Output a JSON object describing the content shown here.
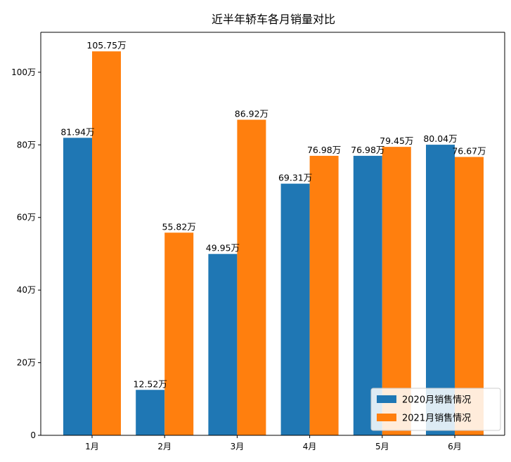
{
  "chart_data": {
    "type": "bar",
    "title": "近半年轿车各月销量对比",
    "xlabel": "",
    "ylabel": "",
    "categories": [
      "1月",
      "2月",
      "3月",
      "4月",
      "5月",
      "6月"
    ],
    "series": [
      {
        "name": "2020月销售情况",
        "color": "#1f77b4",
        "values": [
          81.94,
          12.52,
          49.95,
          69.31,
          76.98,
          80.04
        ],
        "labels": [
          "81.94万",
          "12.52万",
          "49.95万",
          "69.31万",
          "76.98万",
          "80.04万"
        ]
      },
      {
        "name": "2021月销售情况",
        "color": "#ff7f0e",
        "values": [
          105.75,
          55.82,
          86.92,
          76.98,
          79.45,
          76.67
        ],
        "labels": [
          "105.75万",
          "55.82万",
          "86.92万",
          "76.98万",
          "79.45万",
          "76.67万"
        ]
      }
    ],
    "yticks": [
      0,
      20,
      40,
      60,
      80,
      100
    ],
    "ytick_labels": [
      "0",
      "20万",
      "40万",
      "60万",
      "80万",
      "100万"
    ],
    "ylim": [
      0,
      111
    ],
    "grid": false,
    "legend_position": "lower-right"
  }
}
